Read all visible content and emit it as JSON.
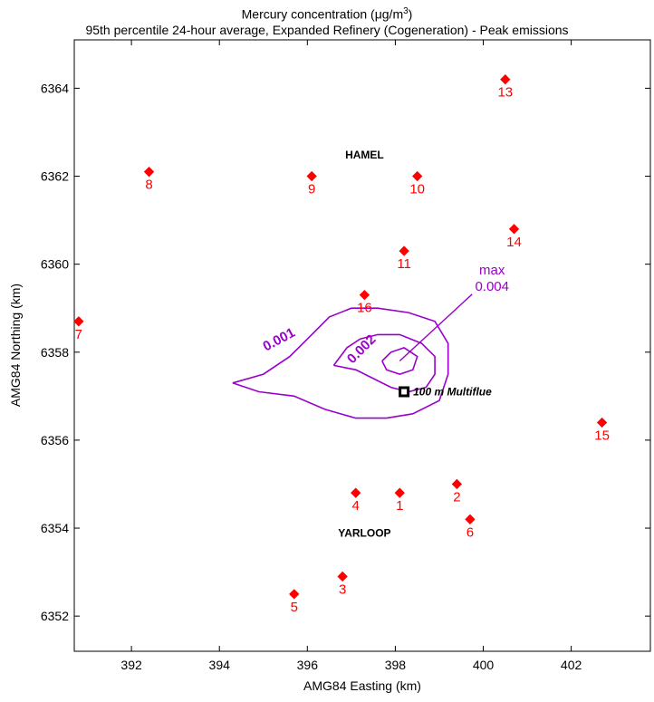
{
  "chart_data": {
    "type": "scatter",
    "title_line1_main": "Mercury concentration (μg/m",
    "title_line1_sup": "3",
    "title_line1_end": ")",
    "title_line2": "95th percentile 24-hour average,  Expanded Refinery (Cogeneration) - Peak emissions",
    "xlabel": "AMG84 Easting (km)",
    "ylabel": "AMG84 Northing (km)",
    "xlim": [
      390.7,
      403.8
    ],
    "ylim": [
      6351.2,
      6365.1
    ],
    "xticks": [
      392,
      394,
      396,
      398,
      400,
      402
    ],
    "yticks": [
      6352,
      6354,
      6356,
      6358,
      6360,
      6362,
      6364
    ],
    "receptor_color": "#ff0000",
    "contour_color": "#9900cc",
    "receptors": [
      {
        "id": "1",
        "x": 398.1,
        "y": 6354.8
      },
      {
        "id": "2",
        "x": 399.4,
        "y": 6355.0
      },
      {
        "id": "3",
        "x": 396.8,
        "y": 6352.9
      },
      {
        "id": "4",
        "x": 397.1,
        "y": 6354.8
      },
      {
        "id": "5",
        "x": 395.7,
        "y": 6352.5
      },
      {
        "id": "6",
        "x": 399.7,
        "y": 6354.2
      },
      {
        "id": "7",
        "x": 390.8,
        "y": 6358.7
      },
      {
        "id": "8",
        "x": 392.4,
        "y": 6362.1
      },
      {
        "id": "9",
        "x": 396.1,
        "y": 6362.0
      },
      {
        "id": "10",
        "x": 398.5,
        "y": 6362.0
      },
      {
        "id": "11",
        "x": 398.2,
        "y": 6360.3
      },
      {
        "id": "13",
        "x": 400.5,
        "y": 6364.2
      },
      {
        "id": "14",
        "x": 400.7,
        "y": 6360.8
      },
      {
        "id": "15",
        "x": 402.7,
        "y": 6356.4
      },
      {
        "id": "16",
        "x": 397.3,
        "y": 6359.3
      }
    ],
    "towns": [
      {
        "name": "HAMEL",
        "x": 397.3,
        "y": 6362.4
      },
      {
        "name": "YARLOOP",
        "x": 397.3,
        "y": 6353.8
      }
    ],
    "source": {
      "name": "100 m Multiflue",
      "x": 398.2,
      "y": 6357.1
    },
    "contours": [
      {
        "level": "0.001",
        "points": [
          [
            394.3,
            6357.3
          ],
          [
            395.0,
            6357.5
          ],
          [
            395.6,
            6357.9
          ],
          [
            396.1,
            6358.4
          ],
          [
            396.5,
            6358.8
          ],
          [
            397.0,
            6359.0
          ],
          [
            397.6,
            6359.0
          ],
          [
            398.3,
            6358.9
          ],
          [
            398.9,
            6358.7
          ],
          [
            399.2,
            6358.2
          ],
          [
            399.2,
            6357.5
          ],
          [
            399.0,
            6356.9
          ],
          [
            398.4,
            6356.6
          ],
          [
            397.8,
            6356.5
          ],
          [
            397.1,
            6356.5
          ],
          [
            396.4,
            6356.7
          ],
          [
            395.7,
            6357.0
          ],
          [
            394.9,
            6357.1
          ],
          [
            394.3,
            6357.3
          ]
        ]
      },
      {
        "level": "0.002",
        "points": [
          [
            396.6,
            6357.7
          ],
          [
            396.9,
            6358.1
          ],
          [
            397.2,
            6358.3
          ],
          [
            397.6,
            6358.4
          ],
          [
            398.1,
            6358.4
          ],
          [
            398.6,
            6358.2
          ],
          [
            398.9,
            6357.9
          ],
          [
            398.9,
            6357.5
          ],
          [
            398.7,
            6357.2
          ],
          [
            398.3,
            6357.1
          ],
          [
            397.9,
            6357.2
          ],
          [
            397.5,
            6357.4
          ],
          [
            397.1,
            6357.6
          ],
          [
            396.6,
            6357.7
          ]
        ]
      },
      {
        "level": "0.004",
        "points": [
          [
            397.7,
            6357.8
          ],
          [
            397.9,
            6358.0
          ],
          [
            398.2,
            6358.1
          ],
          [
            398.5,
            6357.9
          ],
          [
            398.4,
            6357.6
          ],
          [
            398.1,
            6357.5
          ],
          [
            397.8,
            6357.6
          ],
          [
            397.7,
            6357.8
          ]
        ]
      }
    ],
    "contour_labels": [
      {
        "text": "0.001",
        "x": 395.4,
        "y": 6358.2,
        "angle": -28
      },
      {
        "text": "0.002",
        "x": 397.3,
        "y": 6358.0,
        "angle": -45
      }
    ],
    "max_label": {
      "line1": "max",
      "line2": "0.004",
      "x": 400.2,
      "y": 6359.4
    },
    "max_point": {
      "x": 398.1,
      "y": 6357.8
    },
    "grid": false
  }
}
